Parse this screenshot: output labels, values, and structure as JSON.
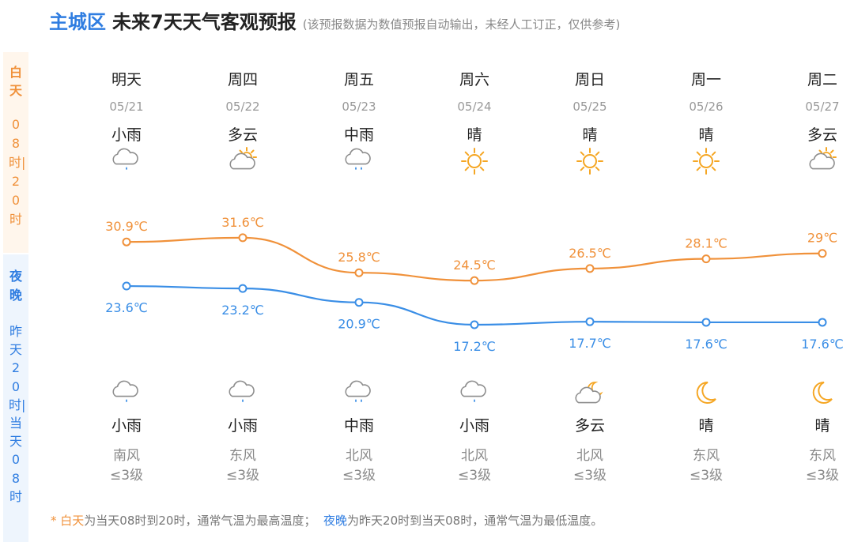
{
  "header": {
    "region": "主城区",
    "title": "未来7天天气客观预报",
    "subtitle": "(该预报数据为数值预报自动输出，未经人工订正，仅供参考)"
  },
  "side": {
    "day_label": "白天",
    "day_range": "08时|20时",
    "night_label": "夜晚",
    "night_range": "昨天20时|当天08时"
  },
  "days": [
    {
      "name": "明天",
      "date": "05/21",
      "day_weather": "小雨",
      "day_icon": "light-rain-icon",
      "night_icon": "light-rain-icon",
      "night_weather": "小雨",
      "wind_dir": "南风",
      "wind_level": "≤3级"
    },
    {
      "name": "周四",
      "date": "05/22",
      "day_weather": "多云",
      "day_icon": "partly-cloudy-icon",
      "night_icon": "light-rain-icon",
      "night_weather": "小雨",
      "wind_dir": "东风",
      "wind_level": "≤3级"
    },
    {
      "name": "周五",
      "date": "05/23",
      "day_weather": "中雨",
      "day_icon": "moderate-rain-icon",
      "night_icon": "moderate-rain-icon",
      "night_weather": "中雨",
      "wind_dir": "北风",
      "wind_level": "≤3级"
    },
    {
      "name": "周六",
      "date": "05/24",
      "day_weather": "晴",
      "day_icon": "sunny-icon",
      "night_icon": "light-rain-icon",
      "night_weather": "小雨",
      "wind_dir": "北风",
      "wind_level": "≤3级"
    },
    {
      "name": "周日",
      "date": "05/25",
      "day_weather": "晴",
      "day_icon": "sunny-icon",
      "night_icon": "cloudy-night-icon",
      "night_weather": "多云",
      "wind_dir": "北风",
      "wind_level": "≤3级"
    },
    {
      "name": "周一",
      "date": "05/26",
      "day_weather": "晴",
      "day_icon": "sunny-icon",
      "night_icon": "moon-icon",
      "night_weather": "晴",
      "wind_dir": "东风",
      "wind_level": "≤3级"
    },
    {
      "name": "周二",
      "date": "05/27",
      "day_weather": "多云",
      "day_icon": "partly-cloudy-icon",
      "night_icon": "moon-icon",
      "night_weather": "晴",
      "wind_dir": "东风",
      "wind_level": "≤3级"
    }
  ],
  "chart_data": {
    "type": "line",
    "categories": [
      "明天",
      "周四",
      "周五",
      "周六",
      "周日",
      "周一",
      "周二"
    ],
    "series": [
      {
        "values": [
          30.9,
          31.6,
          25.8,
          24.5,
          26.5,
          28.1,
          29
        ],
        "color": "#f0913a",
        "labels": [
          "30.9℃",
          "31.6℃",
          "25.8℃",
          "24.5℃",
          "26.5℃",
          "28.1℃",
          "29℃"
        ]
      },
      {
        "values": [
          23.6,
          23.2,
          20.9,
          17.2,
          17.7,
          17.6,
          17.6
        ],
        "color": "#3a8ee6",
        "labels": [
          "23.6℃",
          "23.2℃",
          "20.9℃",
          "17.2℃",
          "17.7℃",
          "17.6℃",
          "17.6℃"
        ]
      }
    ]
  },
  "footer": {
    "star": "* ",
    "day_word": "白天",
    "day_text": "为当天08时到20时，通常气温为最高温度；",
    "night_word": "夜晚",
    "night_text": "为昨天20时到当天08时，通常气温为最低温度。"
  },
  "colors": {
    "accent_blue": "#2f7de1",
    "accent_orange": "#f0913a"
  }
}
